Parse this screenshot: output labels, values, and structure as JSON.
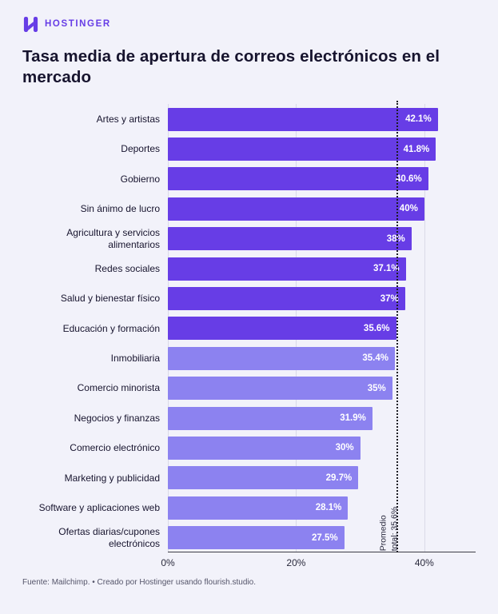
{
  "header": {
    "brand": "HOSTINGER",
    "title": "Tasa media de apertura de correos electrónicos en el mercado"
  },
  "chart_data": {
    "type": "bar",
    "orientation": "horizontal",
    "title": "Tasa media de apertura de correos electrónicos en el mercado",
    "categories": [
      "Artes y artistas",
      "Deportes",
      "Gobierno",
      "Sin ánimo de lucro",
      "Agricultura y servicios alimentarios",
      "Redes sociales",
      "Salud y bienestar físico",
      "Educación y formación",
      "Inmobiliaria",
      "Comercio minorista",
      "Negocios y finanzas",
      "Comercio electrónico",
      "Marketing y publicidad",
      "Software y aplicaciones web",
      "Ofertas diarias/cupones electrónicos"
    ],
    "values": [
      42.1,
      41.8,
      40.6,
      40,
      38,
      37.1,
      37,
      35.6,
      35.4,
      35,
      31.9,
      30,
      29.7,
      28.1,
      27.5
    ],
    "value_labels": [
      "42.1%",
      "41.8%",
      "40.6%",
      "40%",
      "38%",
      "37.1%",
      "37%",
      "35.6%",
      "35.4%",
      "35%",
      "31.9%",
      "30%",
      "29.7%",
      "28.1%",
      "27.5%"
    ],
    "axis_max": 48,
    "ticks": [
      {
        "label": "0%",
        "value": 0
      },
      {
        "label": "20%",
        "value": 20
      },
      {
        "label": "40%",
        "value": 40
      }
    ],
    "average_line": {
      "value": 35.6,
      "label": "Promedio\ntotal: 35.6%"
    },
    "colors": {
      "bar_above_average": "#673de6",
      "bar_below_average": "#8c82f0",
      "average_line": "#1c1c24",
      "grid": "#dadae8"
    },
    "grid": true,
    "legend": false
  },
  "footer": {
    "source": "Fuente: Mailchimp. • Creado por Hostinger usando flourish.studio."
  }
}
